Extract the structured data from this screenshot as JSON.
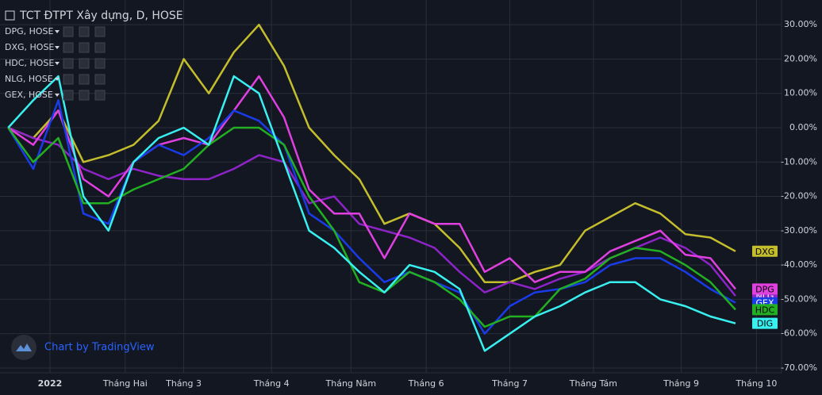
{
  "chart_data": {
    "type": "line",
    "title": "TCT ĐTPT Xây dựng, D, HOSE",
    "legend": [
      "DPG, HOSE",
      "DXG, HOSE",
      "HDC, HOSE",
      "NLG, HOSE",
      "GEX, HOSE"
    ],
    "watermark": "Chart by TradingView",
    "x": [
      0,
      6,
      12,
      18,
      24,
      30,
      36,
      42,
      48,
      54,
      60,
      66,
      72,
      78,
      84,
      90,
      96,
      102,
      108,
      114,
      120,
      126,
      132,
      138,
      144,
      150,
      156,
      162,
      168,
      174
    ],
    "xlim": [
      -1,
      185
    ],
    "xticks": [
      {
        "value": 10,
        "label": "2022"
      },
      {
        "value": 28,
        "label": "Tháng Hai"
      },
      {
        "value": 42,
        "label": "Tháng 3"
      },
      {
        "value": 63,
        "label": "Tháng 4"
      },
      {
        "value": 82,
        "label": "Tháng Năm"
      },
      {
        "value": 100,
        "label": "Tháng 6"
      },
      {
        "value": 120,
        "label": "Tháng 7"
      },
      {
        "value": 140,
        "label": "Tháng Tám"
      },
      {
        "value": 161,
        "label": "Tháng 9"
      },
      {
        "value": 179,
        "label": "Tháng 10"
      }
    ],
    "ylim": [
      -71.4,
      37.2
    ],
    "yticks": [
      {
        "value": 30,
        "label": "30.00%"
      },
      {
        "value": 20,
        "label": "20.00%"
      },
      {
        "value": 10,
        "label": "10.00%"
      },
      {
        "value": 0,
        "label": "0.00%"
      },
      {
        "value": -10,
        "label": "-10.00%"
      },
      {
        "value": -20,
        "label": "-20.00%"
      },
      {
        "value": -30,
        "label": "-30.00%"
      },
      {
        "value": -40,
        "label": "-40.00%"
      },
      {
        "value": -50,
        "label": "-50.00%"
      },
      {
        "value": -60,
        "label": "-60.00%"
      },
      {
        "value": -70,
        "label": "-70.00%"
      }
    ],
    "grid": true,
    "series": [
      {
        "name": "DXG",
        "color": "#c4bd2c",
        "values": [
          0,
          -3,
          5,
          -10,
          -8,
          -5,
          2,
          20,
          10,
          22,
          30,
          18,
          0,
          -8,
          -15,
          -28,
          -25,
          -28,
          -35,
          -45,
          -45,
          -42,
          -40,
          -30,
          -26,
          -22,
          -25,
          -31,
          -32,
          -36
        ]
      },
      {
        "name": "NLG",
        "color": "#8e24c8",
        "values": [
          0,
          -3,
          -5,
          -12,
          -15,
          -12,
          -14,
          -15,
          -15,
          -12,
          -8,
          -10,
          -22,
          -20,
          -28,
          -30,
          -32,
          -35,
          -42,
          -48,
          -45,
          -47,
          -44,
          -42,
          -38,
          -35,
          -32,
          -35,
          -40,
          -49
        ]
      },
      {
        "name": "DPG",
        "color": "#e040e0",
        "values": [
          0,
          -5,
          5,
          -15,
          -20,
          -10,
          -5,
          -3,
          -5,
          5,
          15,
          3,
          -18,
          -25,
          -25,
          -38,
          -25,
          -28,
          -28,
          -42,
          -38,
          -45,
          -42,
          -42,
          -36,
          -33,
          -30,
          -37,
          -38,
          -47
        ]
      },
      {
        "name": "GEX",
        "color": "#1a3ce8",
        "values": [
          0,
          -12,
          8,
          -25,
          -28,
          -10,
          -5,
          -8,
          -3,
          5,
          2,
          -5,
          -25,
          -30,
          -38,
          -45,
          -42,
          -45,
          -48,
          -60,
          -52,
          -48,
          -47,
          -45,
          -40,
          -38,
          -38,
          -42,
          -47,
          -51
        ]
      },
      {
        "name": "HDC",
        "color": "#22b022",
        "values": [
          0,
          -10,
          -3,
          -22,
          -22,
          -18,
          -15,
          -12,
          -5,
          0,
          0,
          -5,
          -20,
          -30,
          -45,
          -48,
          -42,
          -45,
          -50,
          -58,
          -55,
          -55,
          -47,
          -44,
          -38,
          -35,
          -36,
          -40,
          -45,
          -53
        ]
      },
      {
        "name": "DIG",
        "color": "#38f0f0",
        "values": [
          0,
          8,
          15,
          -20,
          -30,
          -10,
          -3,
          0,
          -5,
          15,
          10,
          -10,
          -30,
          -35,
          -42,
          -48,
          -40,
          -42,
          -47,
          -65,
          -60,
          -55,
          -52,
          -48,
          -45,
          -45,
          -50,
          -52,
          -55,
          -57
        ]
      }
    ]
  }
}
